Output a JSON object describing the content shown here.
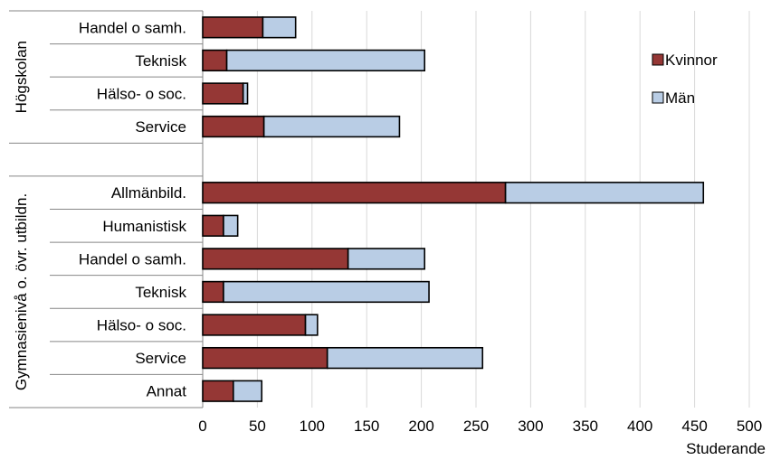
{
  "chart_data": {
    "type": "bar",
    "orientation": "horizontal",
    "stacked": true,
    "xlabel": "Studerande",
    "xlim": [
      0,
      500
    ],
    "xticks": [
      0,
      50,
      100,
      150,
      200,
      250,
      300,
      350,
      400,
      450,
      500
    ],
    "grid": true,
    "legend_position": "top-right",
    "groups": [
      {
        "name": "Högskolan",
        "categories": [
          "Handel o samh.",
          "Teknisk",
          "Hälso- o soc.",
          "Service"
        ]
      },
      {
        "name": "Gymnasienivå o. övr. utbildn.",
        "categories": [
          "Allmänbild.",
          "Humanistisk",
          "Handel o samh.",
          "Teknisk",
          "Hälso- o soc.",
          "Service",
          "Annat"
        ]
      }
    ],
    "series": [
      {
        "name": "Kvinnor",
        "color": "#953735",
        "values": [
          [
            55,
            22,
            37,
            56
          ],
          [
            277,
            19,
            133,
            19,
            94,
            114,
            28
          ]
        ]
      },
      {
        "name": "Män",
        "color": "#b9cde5",
        "values": [
          [
            30,
            181,
            4,
            124
          ],
          [
            181,
            13,
            70,
            188,
            11,
            142,
            26
          ]
        ]
      }
    ]
  }
}
